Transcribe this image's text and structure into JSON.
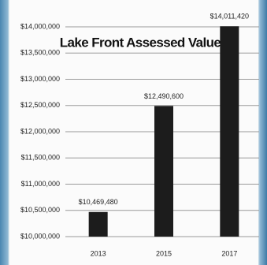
{
  "chart_data": {
    "type": "bar",
    "title": "Lake Front Assessed Value",
    "categories": [
      "2013",
      "2015",
      "2017"
    ],
    "values": [
      10469480,
      12490600,
      14011420
    ],
    "value_labels": [
      "$10,469,480",
      "$12,490,600",
      "$14,011,420"
    ],
    "color": "#1c1c1c",
    "ylim": [
      10000000,
      14000000
    ],
    "yticks": [
      {
        "value": 10000000,
        "label": "$10,000,000"
      },
      {
        "value": 10500000,
        "label": "$10,500,000"
      },
      {
        "value": 11000000,
        "label": "$11,000,000"
      },
      {
        "value": 11500000,
        "label": "$11,500,000"
      },
      {
        "value": 12000000,
        "label": "$12,000,000"
      },
      {
        "value": 12500000,
        "label": "$12,500,000"
      },
      {
        "value": 13000000,
        "label": "$13,000,000"
      },
      {
        "value": 13500000,
        "label": "$13,500,000"
      },
      {
        "value": 14000000,
        "label": "$14,000,000"
      }
    ],
    "grid": true
  }
}
